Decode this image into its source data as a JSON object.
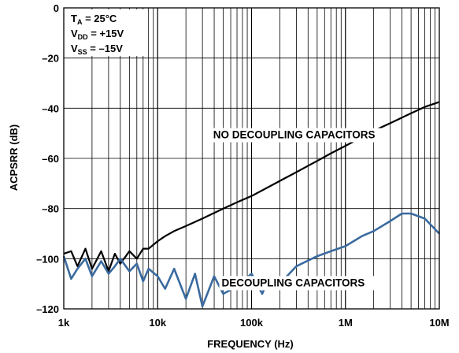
{
  "chart_data": {
    "type": "line",
    "title": "",
    "xlabel": "FREQUENCY (Hz)",
    "ylabel": "ACPSRR (dB)",
    "x_scale": "log",
    "xlim": [
      1000,
      10000000
    ],
    "ylim": [
      -120,
      0
    ],
    "grid": true,
    "x_ticks": [
      {
        "value": 1000,
        "label": "1k"
      },
      {
        "value": 10000,
        "label": "10k"
      },
      {
        "value": 100000,
        "label": "100k"
      },
      {
        "value": 1000000,
        "label": "1M"
      },
      {
        "value": 10000000,
        "label": "10M"
      }
    ],
    "y_ticks": [
      {
        "value": 0,
        "label": "0"
      },
      {
        "value": -20,
        "label": "–20"
      },
      {
        "value": -40,
        "label": "–40"
      },
      {
        "value": -60,
        "label": "–60"
      },
      {
        "value": -80,
        "label": "–80"
      },
      {
        "value": -100,
        "label": "–100"
      },
      {
        "value": -120,
        "label": "–120"
      }
    ],
    "conditions": {
      "ta": {
        "main": "T",
        "sub": "A",
        "rest": " = 25°C"
      },
      "vdd": {
        "main": "V",
        "sub": "DD",
        "rest": " = +15V"
      },
      "vss": {
        "main": "V",
        "sub": "SS",
        "rest": " = –15V"
      }
    },
    "series": [
      {
        "label": "NO DECOUPLING CAPACITORS",
        "color": "#000000",
        "x": [
          1000,
          1200,
          1400,
          1700,
          2000,
          2500,
          3000,
          3500,
          4000,
          5000,
          6000,
          7000,
          8000,
          10000,
          12000,
          15000,
          20000,
          30000,
          50000,
          70000,
          100000,
          150000,
          200000,
          300000,
          500000,
          700000,
          1000000,
          1500000,
          2000000,
          3000000,
          5000000,
          7000000,
          10000000
        ],
        "y": [
          -98,
          -97,
          -103,
          -96,
          -104,
          -97,
          -105,
          -98,
          -102,
          -97,
          -100,
          -96,
          -96,
          -93,
          -91,
          -89,
          -87,
          -84,
          -80,
          -77.5,
          -75,
          -71.5,
          -69,
          -65.5,
          -61,
          -58,
          -55,
          -51.5,
          -49,
          -46,
          -42,
          -39.5,
          -37.5
        ]
      },
      {
        "label": "DECOUPLING CAPACITORS",
        "color": "#3a6a9f",
        "x": [
          1000,
          1200,
          1400,
          1700,
          2000,
          2500,
          3000,
          3500,
          4000,
          5000,
          6000,
          7000,
          8000,
          10000,
          12000,
          15000,
          20000,
          25000,
          30000,
          40000,
          50000,
          70000,
          100000,
          130000,
          150000,
          200000,
          300000,
          500000,
          700000,
          1000000,
          1500000,
          2000000,
          3000000,
          4000000,
          5000000,
          7000000,
          10000000
        ],
        "y": [
          -99,
          -108,
          -104,
          -100,
          -107,
          -101,
          -106,
          -103,
          -100,
          -105,
          -102,
          -109,
          -104,
          -107,
          -112,
          -104,
          -116,
          -106,
          -119,
          -107,
          -114,
          -111,
          -106,
          -114,
          -108,
          -110,
          -103,
          -99,
          -97,
          -95,
          -91,
          -89,
          -85,
          -82,
          -82,
          -84,
          -90
        ]
      }
    ],
    "annotations": [
      {
        "text": "NO DECOUPLING CAPACITORS",
        "x": 39000,
        "y": -52
      },
      {
        "text": "DECOUPLING CAPACITORS",
        "x": 48000,
        "y": -111
      }
    ]
  }
}
